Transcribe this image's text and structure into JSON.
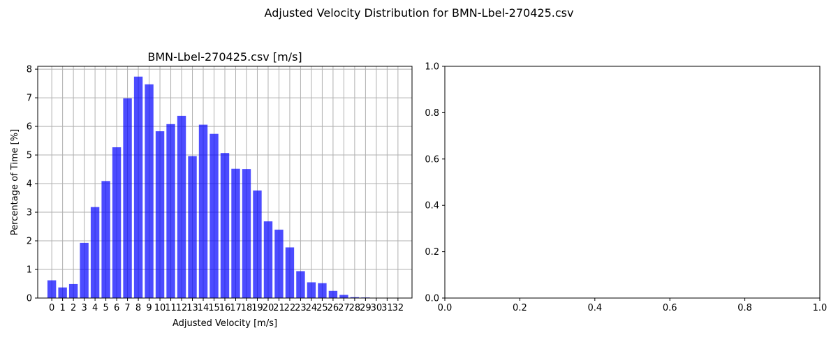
{
  "figure": {
    "suptitle": "Adjusted Velocity Distribution for BMN-Lbel-270425.csv"
  },
  "chart_data": [
    {
      "type": "bar",
      "title": "BMN-Lbel-270425.csv [m/s]",
      "xlabel": "Adjusted Velocity [m/s]",
      "ylabel": "Percentage of Time [%]",
      "categories": [
        "0",
        "1",
        "2",
        "3",
        "4",
        "5",
        "6",
        "7",
        "8",
        "9",
        "10",
        "11",
        "12",
        "13",
        "14",
        "15",
        "16",
        "17",
        "18",
        "19",
        "20",
        "21",
        "22",
        "23",
        "24",
        "25",
        "26",
        "27",
        "28",
        "29",
        "30",
        "31",
        "32"
      ],
      "values": [
        0.62,
        0.37,
        0.49,
        1.93,
        3.18,
        4.09,
        5.27,
        6.98,
        7.74,
        7.47,
        5.83,
        6.08,
        6.37,
        4.96,
        6.06,
        5.74,
        5.07,
        4.52,
        4.51,
        3.76,
        2.68,
        2.39,
        1.77,
        0.94,
        0.55,
        0.52,
        0.25,
        0.11,
        0.03,
        0.02,
        0.0,
        0.0,
        0.0
      ],
      "ylim": [
        0,
        8.1
      ],
      "yticks": [
        0,
        1,
        2,
        3,
        4,
        5,
        6,
        7,
        8
      ],
      "grid": true,
      "bar_color": "#0000ff",
      "bar_alpha": 0.7
    },
    {
      "type": "scatter",
      "title": "",
      "xlabel": "",
      "ylabel": "",
      "xlim": [
        0,
        1
      ],
      "ylim": [
        0,
        1
      ],
      "xticks": [
        "0.0",
        "0.2",
        "0.4",
        "0.6",
        "0.8",
        "1.0"
      ],
      "yticks": [
        "0.0",
        "0.2",
        "0.4",
        "0.6",
        "0.8",
        "1.0"
      ],
      "grid": false,
      "series": []
    }
  ]
}
